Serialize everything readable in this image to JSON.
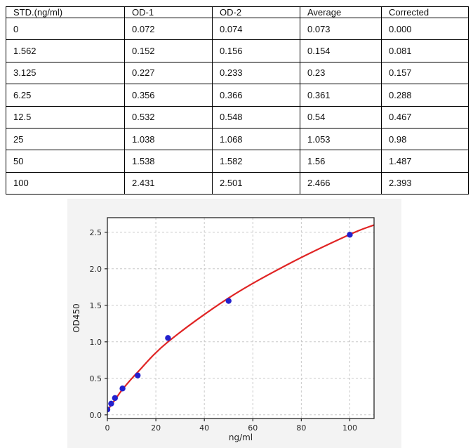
{
  "table": {
    "columns": [
      "STD.(ng/ml)",
      "OD-1",
      "OD-2",
      "Average",
      "Corrected"
    ],
    "rows": [
      [
        "0",
        "0.072",
        "0.074",
        "0.073",
        "0.000"
      ],
      [
        "1.562",
        "0.152",
        "0.156",
        "0.154",
        "0.081"
      ],
      [
        "3.125",
        "0.227",
        "0.233",
        "0.23",
        "0.157"
      ],
      [
        "6.25",
        "0.356",
        "0.366",
        "0.361",
        "0.288"
      ],
      [
        "12.5",
        "0.532",
        "0.548",
        "0.54",
        "0.467"
      ],
      [
        "25",
        "1.038",
        "1.068",
        "1.053",
        "0.98"
      ],
      [
        "50",
        "1.538",
        "1.582",
        "1.56",
        "1.487"
      ],
      [
        "100",
        "2.431",
        "2.501",
        "2.466",
        "2.393"
      ]
    ]
  },
  "chart_data": {
    "type": "scatter",
    "title": "",
    "xlabel": "ng/ml",
    "ylabel": "OD450",
    "xlim": [
      0,
      110
    ],
    "ylim": [
      -0.05,
      2.7
    ],
    "grid": true,
    "grid_style": "dashed",
    "x_tick_values": [
      0,
      20,
      40,
      60,
      80,
      100
    ],
    "x_tick_labels": [
      "0",
      "20",
      "40",
      "60",
      "80",
      "100"
    ],
    "y_tick_values": [
      0.0,
      0.5,
      1.0,
      1.5,
      2.0,
      2.5
    ],
    "y_tick_labels": [
      "0.0",
      "0.5",
      "1.0",
      "1.5",
      "2.0",
      "2.5"
    ],
    "series": [
      {
        "name": "standard-points",
        "type": "scatter",
        "x": [
          0,
          1.562,
          3.125,
          6.25,
          12.5,
          25,
          50,
          100
        ],
        "y": [
          0.073,
          0.154,
          0.23,
          0.361,
          0.54,
          1.053,
          1.56,
          2.466
        ]
      },
      {
        "name": "fit-curve",
        "type": "line",
        "x": [
          0,
          1.562,
          3.125,
          6.25,
          12.5,
          25,
          50,
          75,
          100,
          110
        ],
        "y": [
          0.055,
          0.135,
          0.205,
          0.35,
          0.585,
          1.0,
          1.6,
          2.07,
          2.47,
          2.6
        ]
      }
    ],
    "colors": {
      "points": "#2320cd",
      "curve": "#e02424",
      "grid": "#c9c9c9",
      "spine": "#262626",
      "figure_bg": "#f3f3f3",
      "plot_bg": "#ffffff",
      "table_border": "#000000"
    }
  }
}
